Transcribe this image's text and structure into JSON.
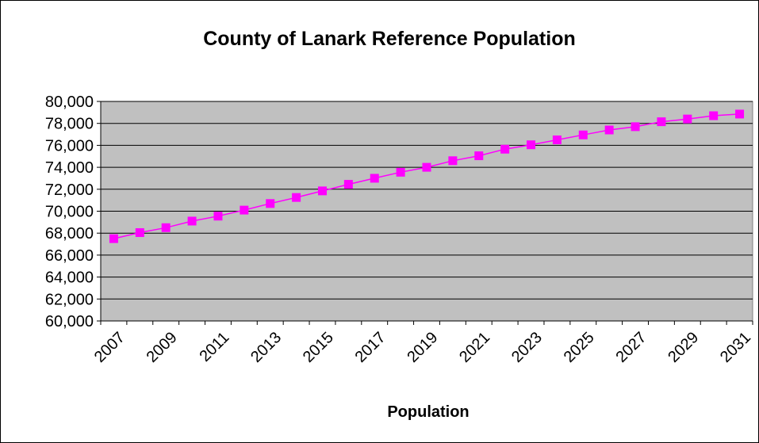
{
  "chart_data": {
    "type": "line",
    "title": "County of Lanark Reference Population",
    "xlabel": "Population",
    "ylabel": "",
    "x": [
      2007,
      2008,
      2009,
      2010,
      2011,
      2012,
      2013,
      2014,
      2015,
      2016,
      2017,
      2018,
      2019,
      2020,
      2021,
      2022,
      2023,
      2024,
      2025,
      2026,
      2027,
      2028,
      2029,
      2030,
      2031
    ],
    "x_tick_labels": [
      "2007",
      "2009",
      "2011",
      "2013",
      "2015",
      "2017",
      "2019",
      "2021",
      "2023",
      "2025",
      "2027",
      "2029",
      "2031"
    ],
    "y_tick_labels": [
      "60,000",
      "62,000",
      "64,000",
      "66,000",
      "68,000",
      "70,000",
      "72,000",
      "74,000",
      "76,000",
      "78,000",
      "80,000"
    ],
    "ylim": [
      60000,
      80000
    ],
    "y_major_step": 2000,
    "grid": true,
    "legend": "none",
    "series": [
      {
        "values": [
          67500,
          68050,
          68500,
          69100,
          69550,
          70100,
          70700,
          71250,
          71850,
          72450,
          73000,
          73550,
          74000,
          74600,
          75050,
          75650,
          76050,
          76500,
          76950,
          77400,
          77700,
          78150,
          78400,
          78700,
          78850
        ],
        "color": "#ff00ff",
        "marker": "square"
      }
    ],
    "colors": {
      "plot_background": "#c0c0c0",
      "gridline": "#000000",
      "series": "#ff00ff"
    }
  }
}
